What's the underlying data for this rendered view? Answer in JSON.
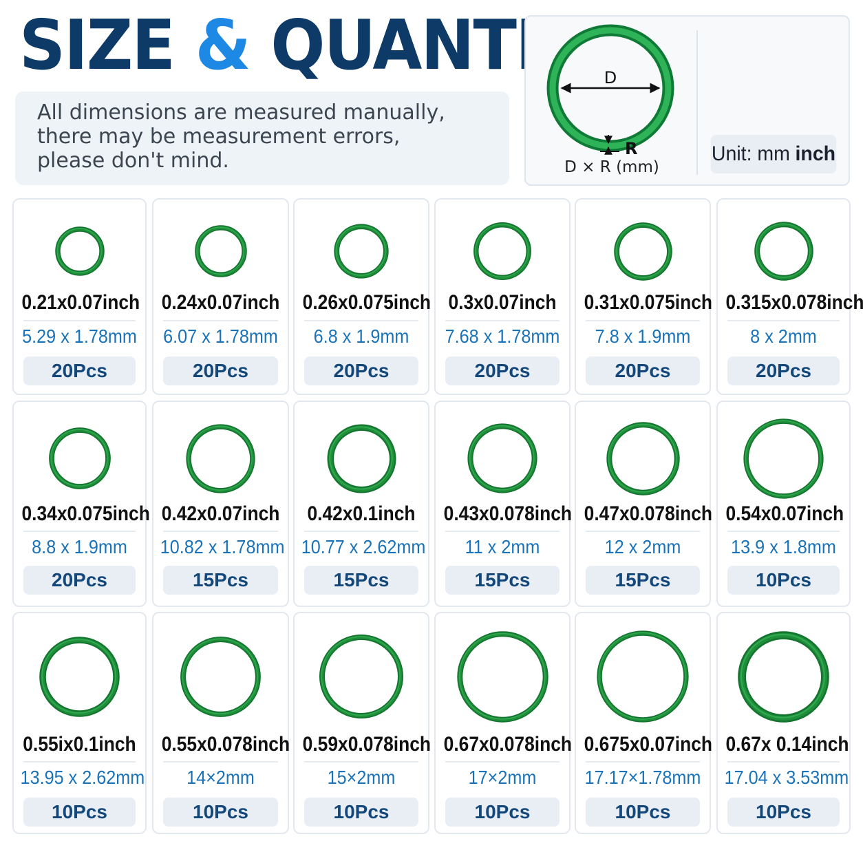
{
  "header": {
    "title_part1": "SIZE",
    "title_amp": "&",
    "title_part2": "QUANTITY",
    "note_lines": [
      "All dimensions are measured manually,",
      "there may be measurement errors,",
      "please don't mind."
    ]
  },
  "diagram": {
    "d_label": "D",
    "r_label": "R",
    "formula": "D × R (mm)",
    "unit_prefix": "Unit: mm",
    "unit_bold": "inch"
  },
  "colors": {
    "title_dark": "#0d3a66",
    "title_accent": "#1e88e5",
    "ring_green": "#1f8f3a",
    "mm_blue": "#1a73b8",
    "qty_text": "#15487a"
  },
  "items": [
    {
      "inch": "0.21x0.07inch",
      "mm": "5.29 x 1.78mm",
      "qty": "20Pcs",
      "d_mm": 5.29,
      "r_mm": 1.78
    },
    {
      "inch": "0.24x0.07inch",
      "mm": "6.07 x 1.78mm",
      "qty": "20Pcs",
      "d_mm": 6.07,
      "r_mm": 1.78
    },
    {
      "inch": "0.26x0.075inch",
      "mm": "6.8 x 1.9mm",
      "qty": "20Pcs",
      "d_mm": 6.8,
      "r_mm": 1.9
    },
    {
      "inch": "0.3x0.07inch",
      "mm": "7.68 x 1.78mm",
      "qty": "20Pcs",
      "d_mm": 7.68,
      "r_mm": 1.78
    },
    {
      "inch": "0.31x0.075inch",
      "mm": "7.8 x 1.9mm",
      "qty": "20Pcs",
      "d_mm": 7.8,
      "r_mm": 1.9
    },
    {
      "inch": "0.315x0.078inch",
      "mm": "8 x 2mm",
      "qty": "20Pcs",
      "d_mm": 8,
      "r_mm": 2
    },
    {
      "inch": "0.34x0.075inch",
      "mm": "8.8 x 1.9mm",
      "qty": "20Pcs",
      "d_mm": 8.8,
      "r_mm": 1.9
    },
    {
      "inch": "0.42x0.07inch",
      "mm": "10.82 x 1.78mm",
      "qty": "15Pcs",
      "d_mm": 10.82,
      "r_mm": 1.78
    },
    {
      "inch": "0.42x0.1inch",
      "mm": "10.77 x 2.62mm",
      "qty": "15Pcs",
      "d_mm": 10.77,
      "r_mm": 2.62
    },
    {
      "inch": "0.43x0.078inch",
      "mm": "11 x 2mm",
      "qty": "15Pcs",
      "d_mm": 11,
      "r_mm": 2
    },
    {
      "inch": "0.47x0.078inch",
      "mm": "12 x 2mm",
      "qty": "15Pcs",
      "d_mm": 12,
      "r_mm": 2
    },
    {
      "inch": "0.54x0.07inch",
      "mm": "13.9 x 1.8mm",
      "qty": "10Pcs",
      "d_mm": 13.9,
      "r_mm": 1.8
    },
    {
      "inch": "0.55ix0.1inch",
      "mm": "13.95 x 2.62mm",
      "qty": "10Pcs",
      "d_mm": 13.95,
      "r_mm": 2.62
    },
    {
      "inch": "0.55x0.078inch",
      "mm": "14×2mm",
      "qty": "10Pcs",
      "d_mm": 14,
      "r_mm": 2
    },
    {
      "inch": "0.59x0.078inch",
      "mm": "15×2mm",
      "qty": "10Pcs",
      "d_mm": 15,
      "r_mm": 2
    },
    {
      "inch": "0.67x0.078inch",
      "mm": "17×2mm",
      "qty": "10Pcs",
      "d_mm": 17,
      "r_mm": 2
    },
    {
      "inch": "0.675x0.07inch",
      "mm": "17.17×1.78mm",
      "qty": "10Pcs",
      "d_mm": 17.17,
      "r_mm": 1.78
    },
    {
      "inch": "0.67x 0.14inch",
      "mm": "17.04 x 3.53mm",
      "qty": "10Pcs",
      "d_mm": 17.04,
      "r_mm": 3.53
    }
  ]
}
